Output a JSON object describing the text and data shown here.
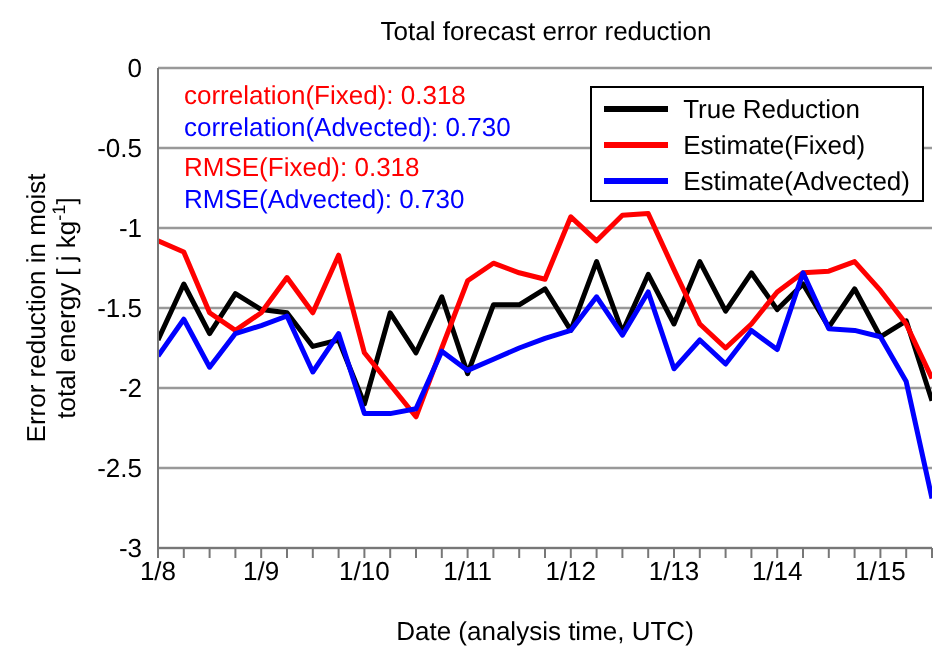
{
  "chart_data": {
    "type": "line",
    "title": "Total forecast error reduction",
    "xlabel": "Date (analysis time, UTC)",
    "ylabel": "Error reduction in moist total energy [ j kg$^{-1}$]",
    "categories": [
      "1/8",
      null,
      null,
      null,
      "1/9",
      null,
      null,
      null,
      "1/10",
      null,
      null,
      null,
      "1/11",
      null,
      null,
      null,
      "1/12",
      null,
      null,
      null,
      "1/13",
      null,
      null,
      null,
      "1/14",
      null,
      null,
      null,
      "1/15",
      null,
      null
    ],
    "series": [
      {
        "name": "True Reduction",
        "color": "#000000",
        "values": [
          -1.7,
          -1.35,
          -1.66,
          -1.41,
          -1.51,
          -1.53,
          -1.74,
          -1.7,
          -2.1,
          -1.53,
          -1.78,
          -1.43,
          -1.91,
          -1.48,
          -1.48,
          -1.38,
          -1.64,
          -1.21,
          -1.65,
          -1.29,
          -1.6,
          -1.21,
          -1.52,
          -1.28,
          -1.51,
          -1.35,
          -1.62,
          -1.38,
          -1.68,
          -1.58,
          -2.08
        ]
      },
      {
        "name": "Estimate(Fixed)",
        "color": "#ff0000",
        "values": [
          -1.08,
          -1.15,
          -1.53,
          -1.64,
          -1.53,
          -1.31,
          -1.53,
          -1.17,
          -1.78,
          -1.98,
          -2.18,
          -1.75,
          -1.33,
          -1.22,
          -1.28,
          -1.32,
          -0.93,
          -1.08,
          -0.92,
          -0.91,
          -1.26,
          -1.6,
          -1.75,
          -1.6,
          -1.4,
          -1.28,
          -1.27,
          -1.21,
          -1.39,
          -1.6,
          -1.94
        ]
      },
      {
        "name": "Estimate(Advected)",
        "color": "#0000ff",
        "values": [
          -1.8,
          -1.57,
          -1.87,
          -1.66,
          -1.61,
          -1.55,
          -1.9,
          -1.66,
          -2.16,
          -2.16,
          -2.13,
          -1.77,
          -1.89,
          -1.82,
          -1.75,
          -1.69,
          -1.64,
          -1.43,
          -1.67,
          -1.4,
          -1.88,
          -1.7,
          -1.85,
          -1.64,
          -1.76,
          -1.28,
          -1.63,
          -1.64,
          -1.68,
          -1.96,
          -2.69
        ]
      }
    ],
    "ylim": [
      -3,
      0
    ],
    "yticks": [
      0,
      -0.5,
      -1,
      -1.5,
      -2,
      -2.5,
      -3
    ],
    "grid": "y",
    "legend": "top right",
    "marker": "none",
    "line_style": "solid",
    "annotations": [
      "correlation(Fixed): 0.318",
      "correlation(Advected): 0.730",
      "RMSE(Fixed): 0.318",
      "RMSE(Advected): 0.730"
    ]
  }
}
